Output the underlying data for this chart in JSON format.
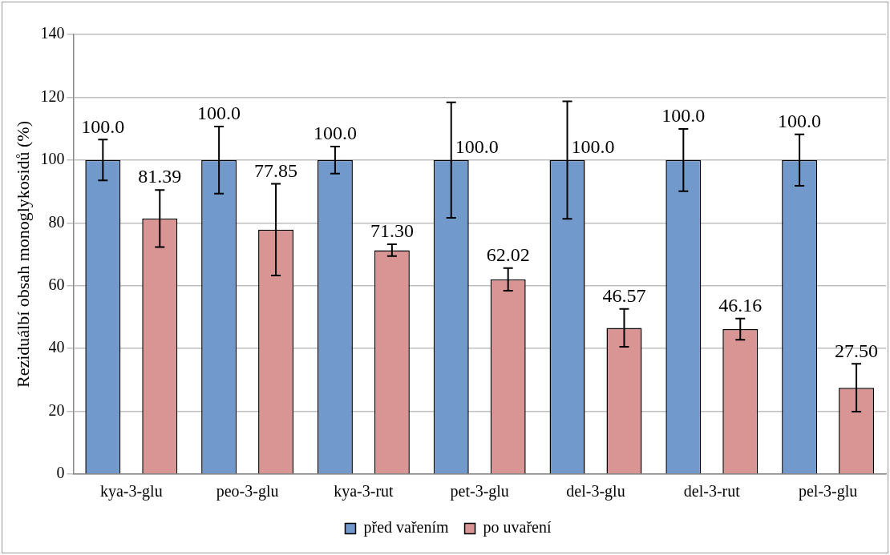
{
  "chart_data": {
    "type": "bar",
    "ylabel": "Reziduálbí obsah monoglykosidů (%)",
    "categories": [
      "kya-3-glu",
      "peo-3-glu",
      "kya-3-rut",
      "pet-3-glu",
      "del-3-glu",
      "del-3-rut",
      "pel-3-glu"
    ],
    "series": [
      {
        "name": "před vařením",
        "color": "#7199cb",
        "values": [
          100,
          100,
          100,
          100,
          100,
          100,
          100
        ],
        "errors": [
          6.5,
          10.7,
          4.3,
          18.4,
          18.7,
          9.9,
          8.2
        ],
        "value_labels": [
          "100.0",
          "100.0",
          "100.0",
          "100.0",
          "100.0",
          "100.0",
          "100.0"
        ]
      },
      {
        "name": "po uvaření",
        "color": "#d99594",
        "values": [
          81.39,
          77.85,
          71.3,
          62.02,
          46.57,
          46.16,
          27.5
        ],
        "errors": [
          9.1,
          14.6,
          1.9,
          3.6,
          6,
          3.4,
          7.6
        ],
        "value_labels": [
          "81.39",
          "77.85",
          "71.30",
          "62.02",
          "46.57",
          "46.16",
          "27.50"
        ]
      }
    ],
    "ylim": [
      0,
      140
    ],
    "yticks": [
      0,
      20,
      40,
      60,
      80,
      100,
      120,
      140
    ],
    "grid": "y",
    "legend": "bottom"
  }
}
